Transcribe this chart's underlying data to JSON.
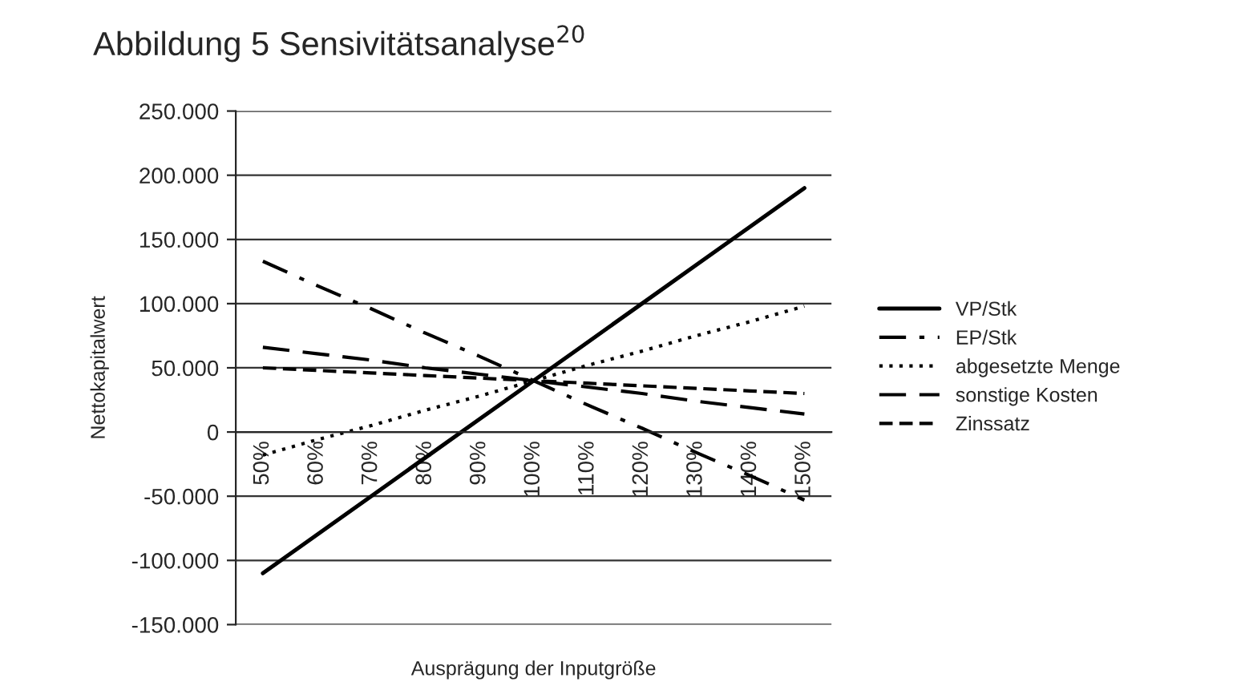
{
  "chart_data": {
    "type": "line",
    "title": "Abbildung 5 Sensivitätsanalyse$^{20}$",
    "xlabel": "Ausprägung der Inputgröße",
    "ylabel": "Nettokapitalwert",
    "categories": [
      "50%",
      "60%",
      "70%",
      "80%",
      "90%",
      "100%",
      "110%",
      "120%",
      "130%",
      "140%",
      "150%"
    ],
    "series": [
      {
        "name": "VP/Stk",
        "color": "#000000",
        "line_style": "solid",
        "values": [
          -110000,
          -80000,
          -50000,
          -20000,
          10000,
          40000,
          70000,
          100000,
          130000,
          160000,
          190000
        ]
      },
      {
        "name": "EP/Stk",
        "color": "#000000",
        "line_style": "dashdot",
        "values": [
          133000,
          114000,
          96000,
          77000,
          59000,
          40000,
          21000,
          3000,
          -16000,
          -34000,
          -53000
        ]
      },
      {
        "name": "abgesetzte Menge",
        "color": "#000000",
        "line_style": "dotted",
        "values": [
          -18000,
          -6000,
          5000,
          17000,
          28000,
          40000,
          52000,
          63000,
          75000,
          86000,
          98000
        ]
      },
      {
        "name": "sonstige Kosten",
        "color": "#000000",
        "line_style": "dashed",
        "values": [
          66000,
          61000,
          56000,
          50000,
          45000,
          40000,
          35000,
          30000,
          24000,
          19000,
          14000
        ]
      },
      {
        "name": "Zinssatz",
        "color": "#000000",
        "line_style": "short-dashed",
        "values": [
          50000,
          48000,
          46000,
          44000,
          42000,
          40000,
          38000,
          36000,
          34000,
          32000,
          30000
        ]
      }
    ],
    "ylim": [
      -150000,
      250000
    ],
    "yticks": [
      {
        "value": -150000,
        "label": "-150.000"
      },
      {
        "value": -100000,
        "label": "-100.000"
      },
      {
        "value": -50000,
        "label": "-50.000"
      },
      {
        "value": 0,
        "label": "0"
      },
      {
        "value": 50000,
        "label": "50.000"
      },
      {
        "value": 100000,
        "label": "100.000"
      },
      {
        "value": 150000,
        "label": "150.000"
      },
      {
        "value": 200000,
        "label": "200.000"
      },
      {
        "value": 250000,
        "label": "250.000"
      }
    ],
    "grid": "y",
    "legend": "right",
    "marker": "none"
  }
}
